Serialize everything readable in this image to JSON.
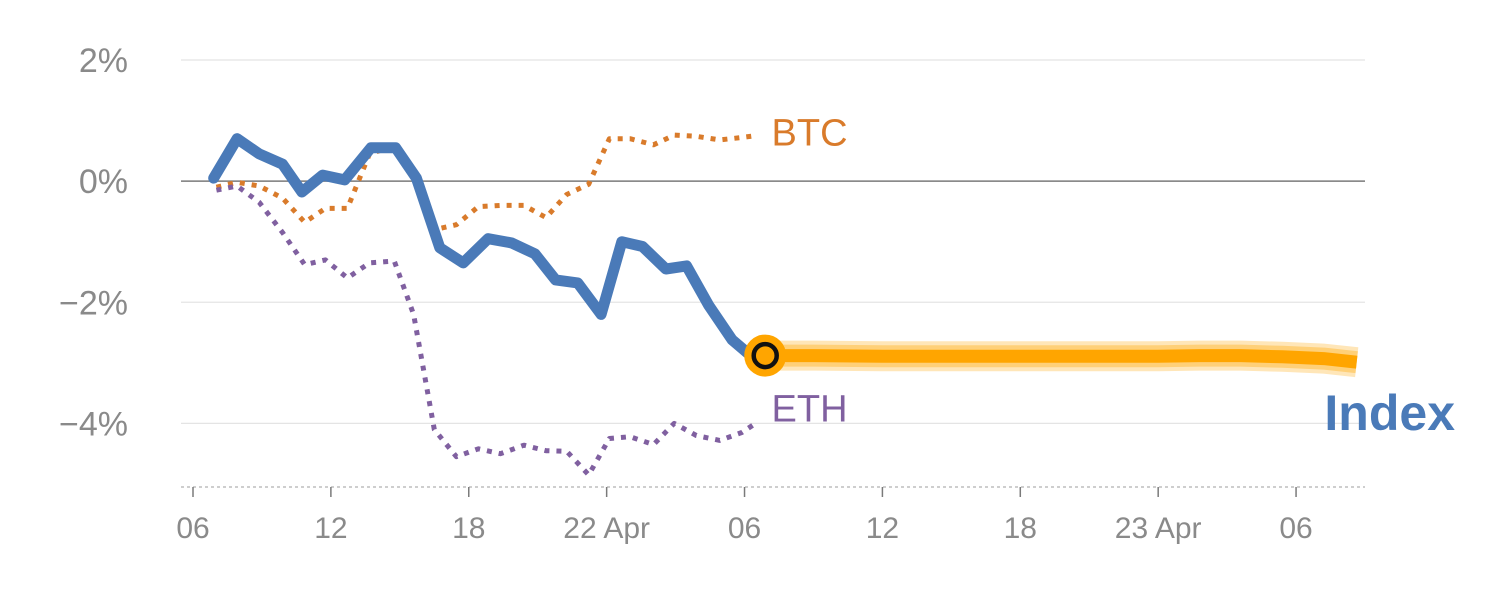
{
  "chart_data": {
    "type": "line",
    "title": "",
    "xlabel": "",
    "ylabel": "",
    "ylim": [
      -5.05,
      2.0
    ],
    "y_ticks": [
      2,
      0,
      -2,
      -4
    ],
    "y_tick_labels": [
      "2%",
      "0%",
      "−2%",
      "−4%"
    ],
    "x_range": [
      0,
      85
    ],
    "x_ticks": [
      0,
      10,
      20,
      30,
      40,
      50,
      60,
      70,
      80
    ],
    "x_tick_labels": [
      "06",
      "12",
      "18",
      "22 Apr",
      "06",
      "12",
      "18",
      "23 Apr",
      "06"
    ],
    "series": [
      {
        "name": "Index",
        "label": "Index",
        "style": "solid",
        "color": "#4a7ab8",
        "x": [
          1.5,
          3.2,
          4.8,
          6.5,
          7.9,
          9.4,
          11.0,
          12.9,
          14.7,
          16.2,
          17.9,
          19.6,
          21.4,
          23.1,
          24.8,
          26.3,
          27.9,
          29.6,
          31.1,
          32.6,
          34.3,
          35.8,
          37.4,
          39.1,
          40.8
        ],
        "values": [
          0.05,
          0.7,
          0.45,
          0.28,
          -0.18,
          0.1,
          0.02,
          0.55,
          0.55,
          0.05,
          -1.1,
          -1.35,
          -0.95,
          -1.02,
          -1.2,
          -1.63,
          -1.68,
          -2.2,
          -1.0,
          -1.08,
          -1.45,
          -1.4,
          -2.05,
          -2.62,
          -2.95
        ]
      },
      {
        "name": "Forecast",
        "label": "",
        "style": "band",
        "color": "#ffa500",
        "x": [
          41.5,
          45,
          50,
          55,
          60,
          65,
          70,
          73,
          76,
          79,
          82,
          84.4
        ],
        "values": [
          -2.88,
          -2.88,
          -2.89,
          -2.89,
          -2.89,
          -2.89,
          -2.89,
          -2.88,
          -2.88,
          -2.9,
          -2.93,
          -2.99
        ]
      },
      {
        "name": "BTC",
        "label": "BTC",
        "style": "dotted",
        "color": "#d97b2b",
        "x": [
          1.7,
          3.2,
          4.8,
          6.5,
          8.1,
          9.6,
          11.2,
          12.8,
          14.6,
          16.0,
          17.5,
          19.1,
          20.7,
          22.3,
          24.0,
          25.6,
          27.1,
          28.7,
          30.2,
          31.7,
          33.4,
          34.9,
          36.5,
          38.2,
          39.8,
          40.8
        ],
        "values": [
          -0.1,
          -0.02,
          -0.08,
          -0.28,
          -0.68,
          -0.45,
          -0.45,
          0.45,
          0.58,
          0.2,
          -0.8,
          -0.72,
          -0.42,
          -0.4,
          -0.4,
          -0.6,
          -0.22,
          -0.05,
          0.7,
          0.7,
          0.6,
          0.76,
          0.74,
          0.68,
          0.72,
          0.75
        ]
      },
      {
        "name": "ETH",
        "label": "ETH",
        "style": "dotted",
        "color": "#8060a0",
        "x": [
          1.7,
          3.2,
          4.8,
          6.5,
          8.1,
          9.6,
          11.2,
          12.8,
          14.6,
          16.0,
          17.5,
          19.1,
          20.7,
          22.3,
          24.0,
          25.6,
          27.1,
          28.7,
          30.2,
          31.7,
          33.4,
          34.9,
          36.5,
          38.2,
          39.8,
          40.8
        ],
        "values": [
          -0.15,
          -0.08,
          -0.35,
          -0.85,
          -1.38,
          -1.3,
          -1.6,
          -1.35,
          -1.32,
          -2.2,
          -4.1,
          -4.55,
          -4.42,
          -4.5,
          -4.36,
          -4.45,
          -4.46,
          -4.85,
          -4.25,
          -4.22,
          -4.35,
          -4.0,
          -4.2,
          -4.28,
          -4.15,
          -4.0
        ]
      }
    ],
    "marker": {
      "series": "Index",
      "x": 41.5,
      "value": -2.88
    },
    "colors": {
      "grid": "#e4e4e4",
      "zero_line": "#7a7a7a",
      "axis": "#bdbdbd",
      "tick_text": "#8a8a8a",
      "marker_fill": "#ffa500",
      "marker_ring": "#111111"
    }
  }
}
